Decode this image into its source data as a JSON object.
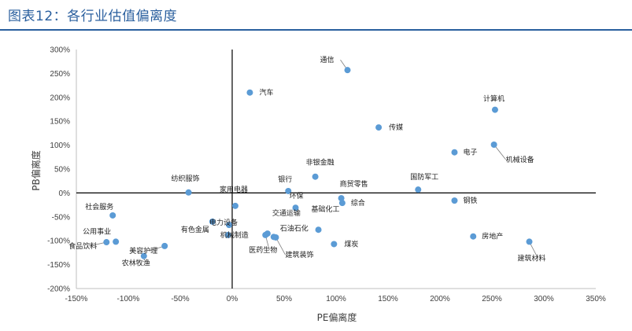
{
  "page": {
    "figure_title": "图表12：各行业估值偏离度"
  },
  "chart_data": {
    "type": "scatter",
    "xlabel": "PE偏离度",
    "ylabel": "PB偏离度",
    "xlim": [
      -150,
      350
    ],
    "ylim": [
      -200,
      300
    ],
    "x_ticks": [
      -150,
      -100,
      -50,
      0,
      50,
      100,
      150,
      200,
      250,
      300,
      350
    ],
    "y_ticks": [
      -200,
      -150,
      -100,
      -50,
      0,
      50,
      100,
      150,
      200,
      250,
      300
    ],
    "x_tick_labels": [
      "-150%",
      "-100%",
      "-50%",
      "0%",
      "50%",
      "100%",
      "150%",
      "200%",
      "250%",
      "300%",
      "350%"
    ],
    "y_tick_labels": [
      "-200%",
      "-150%",
      "-100%",
      "-50%",
      "0%",
      "50%",
      "100%",
      "150%",
      "200%",
      "250%",
      "300%"
    ],
    "point_color": "#5b9bd5",
    "points": [
      {
        "name": "通信",
        "x": 111,
        "y": 257
      },
      {
        "name": "汽车",
        "x": 17,
        "y": 210
      },
      {
        "name": "计算机",
        "x": 253,
        "y": 174
      },
      {
        "name": "传媒",
        "x": 141,
        "y": 137
      },
      {
        "name": "电子",
        "x": 214,
        "y": 85
      },
      {
        "name": "机械设备",
        "x": 252,
        "y": 101
      },
      {
        "name": "非银金融",
        "x": 80,
        "y": 34
      },
      {
        "name": "纺织服饰",
        "x": -42,
        "y": 1
      },
      {
        "name": "银行",
        "x": 54,
        "y": 4
      },
      {
        "name": "国防军工",
        "x": 179,
        "y": 7
      },
      {
        "name": "家用电器",
        "x": 3,
        "y": -27
      },
      {
        "name": "环保",
        "x": 61,
        "y": -31
      },
      {
        "name": "商贸零售",
        "x": 105,
        "y": -11
      },
      {
        "name": "综合",
        "x": 106,
        "y": -21
      },
      {
        "name": "钢铁",
        "x": 214,
        "y": -16
      },
      {
        "name": "社会服务",
        "x": -115,
        "y": -47
      },
      {
        "name": "有色金属",
        "x": -19,
        "y": -60
      },
      {
        "name": "电力设备",
        "x": -3,
        "y": -67
      },
      {
        "name": "机械制造",
        "x": -4,
        "y": -88
      },
      {
        "name": "基础化工",
        "x": 83,
        "y": -77
      },
      {
        "name": "交通运输",
        "x": 34,
        "y": -85
      },
      {
        "name": "石油石化",
        "x": 40,
        "y": -92
      },
      {
        "name": "医药生物",
        "x": 32,
        "y": -88
      },
      {
        "name": "建筑装饰",
        "x": 42,
        "y": -93
      },
      {
        "name": "煤炭",
        "x": 98,
        "y": -107
      },
      {
        "name": "房地产",
        "x": 232,
        "y": -91
      },
      {
        "name": "建筑材料",
        "x": 286,
        "y": -102
      },
      {
        "name": "公用事业",
        "x": -112,
        "y": -102
      },
      {
        "name": "食品饮料",
        "x": -121,
        "y": -103
      },
      {
        "name": "美容护理",
        "x": -65,
        "y": -111
      },
      {
        "name": "农林牧渔",
        "x": -85,
        "y": -132
      }
    ]
  }
}
